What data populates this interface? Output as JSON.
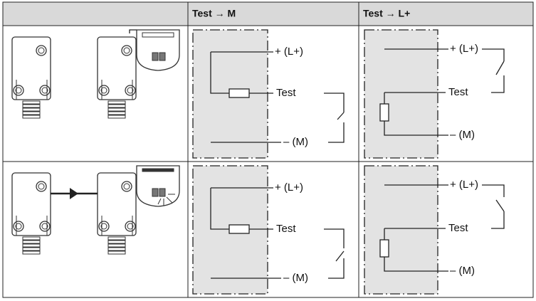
{
  "table": {
    "header": [
      "Test → M",
      "Test → L+"
    ],
    "rows": [
      {
        "test_m": {
          "supply": "+ (L+)",
          "test": "Test",
          "ground": "– (M)"
        },
        "test_lplus": {
          "supply": "+ (L+)",
          "test": "Test",
          "ground": "– (M)"
        }
      },
      {
        "test_m": {
          "supply": "+ (L+)",
          "test": "Test",
          "ground": "– (M)"
        },
        "test_lplus": {
          "supply": "+ (L+)",
          "test": "Test",
          "ground": "– (M)"
        }
      }
    ]
  }
}
